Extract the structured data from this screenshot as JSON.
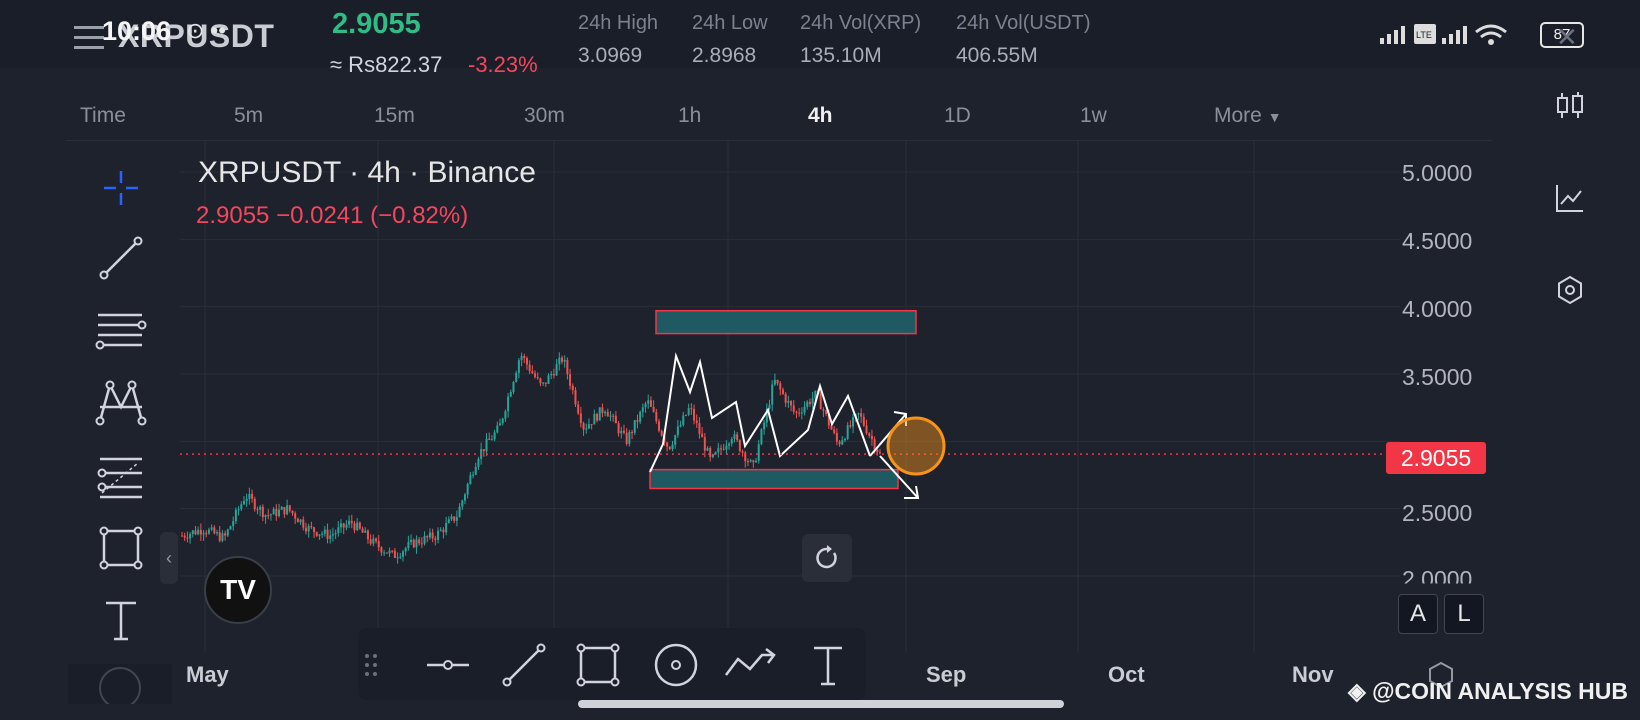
{
  "status": {
    "time": "10:06",
    "battery": "87"
  },
  "header": {
    "pair": "XRPUSDT",
    "last_price": "2.9055",
    "fiat_price": "≈ Rs822.37",
    "change_pct": "-3.23%",
    "stats": [
      {
        "label": "24h High",
        "value": "3.0969"
      },
      {
        "label": "24h Low",
        "value": "2.8968"
      },
      {
        "label": "24h Vol(XRP)",
        "value": "135.10M"
      },
      {
        "label": "24h Vol(USDT)",
        "value": "406.55M"
      }
    ]
  },
  "timeframes": [
    {
      "label": "Time"
    },
    {
      "label": "5m"
    },
    {
      "label": "15m"
    },
    {
      "label": "30m"
    },
    {
      "label": "1h"
    },
    {
      "label": "4h"
    },
    {
      "label": "1D"
    },
    {
      "label": "1w"
    },
    {
      "label": "More"
    }
  ],
  "chart": {
    "title": "XRPUSDT · 4h · Binance",
    "ohlc_line": "2.9055  −0.0241 (−0.82%)",
    "price_tag": "2.9055",
    "y_labels": [
      "5.0000",
      "4.5000",
      "4.0000",
      "3.5000",
      "2.5000",
      "2.0000"
    ],
    "x_labels": [
      "May",
      "Sep",
      "Oct",
      "Nov"
    ],
    "colors": {
      "up": "#26a69a",
      "down": "#ef5350",
      "zone": "#1f5a63",
      "zone_border": "#f23645",
      "target": "#f7931a"
    }
  },
  "chart_data": {
    "type": "candlestick",
    "title": "XRPUSDT · 4h · Binance",
    "ylim": [
      1.9,
      5.1
    ],
    "last_price": 2.9055,
    "zones": [
      {
        "name": "resistance",
        "from": 3.8,
        "to": 3.97
      },
      {
        "name": "support",
        "from": 2.65,
        "to": 2.79
      }
    ],
    "path_points": [
      2.3,
      2.35,
      2.28,
      2.6,
      2.45,
      2.5,
      2.35,
      2.3,
      2.4,
      2.25,
      2.15,
      2.25,
      2.3,
      2.45,
      2.9,
      3.1,
      3.65,
      3.4,
      3.62,
      3.1,
      3.25,
      3.0,
      3.3,
      2.95,
      3.25,
      2.85,
      3.05,
      2.8,
      3.45,
      3.2,
      3.35,
      2.98,
      3.2,
      2.9
    ]
  },
  "toolbars": {
    "left": [
      "crosshair",
      "trend-line",
      "horizontal-lines",
      "pattern",
      "fib",
      "rectangle",
      "text"
    ],
    "bottom": [
      "handle",
      "horizontal-ray",
      "line",
      "rectangle",
      "circle",
      "path",
      "text"
    ],
    "right": [
      "compare",
      "indicators",
      "settings"
    ],
    "scale_buttons": [
      "A",
      "L"
    ]
  },
  "watermark": "◈ @COIN ANALYSIS HUB"
}
